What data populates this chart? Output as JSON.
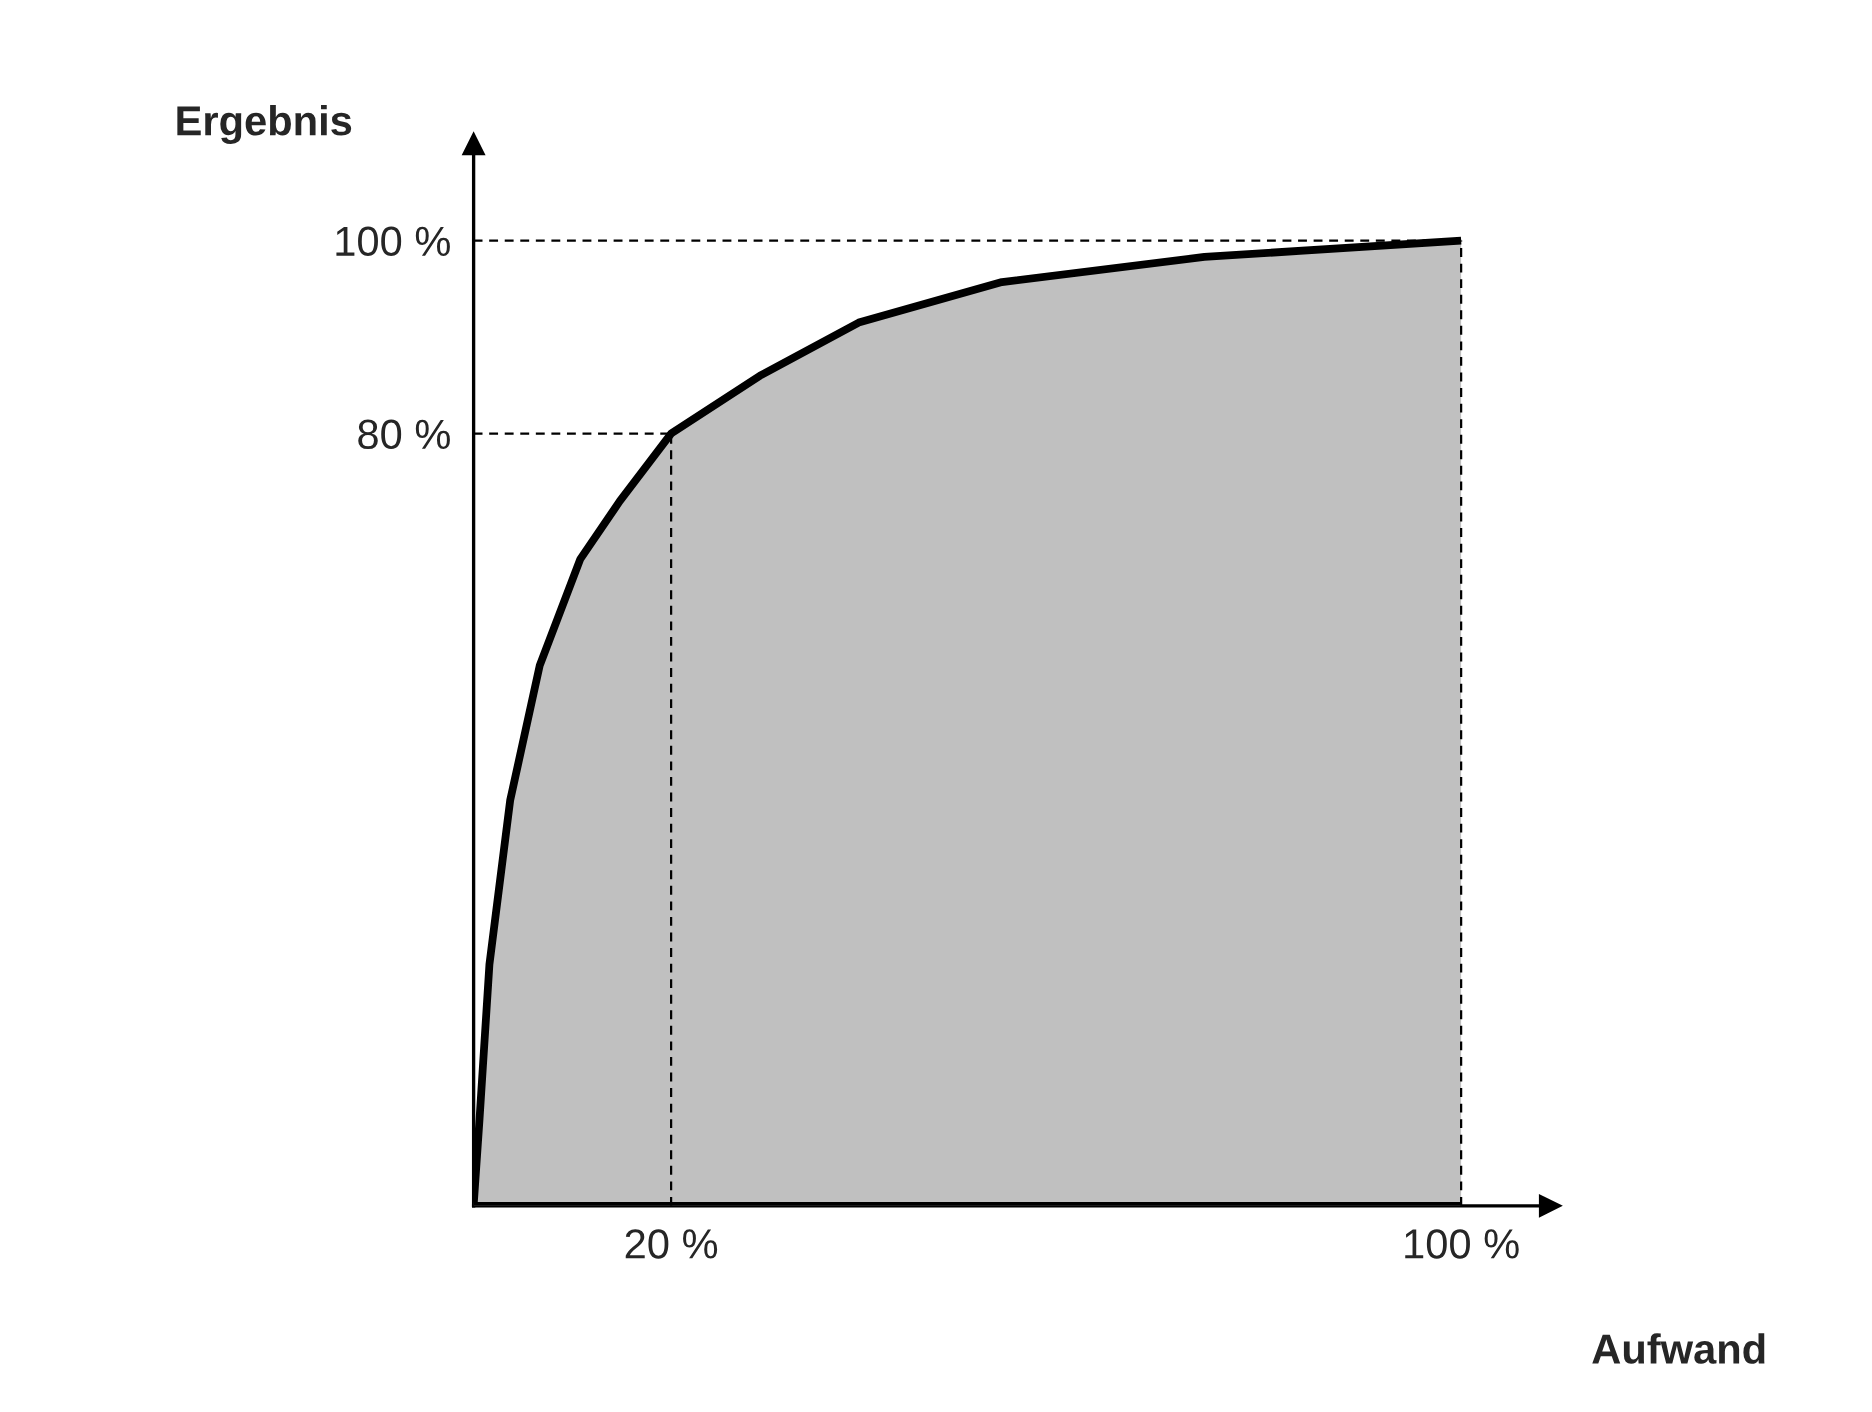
{
  "chart_data": {
    "type": "area",
    "xlabel": "Aufwand",
    "ylabel": "Ergebnis",
    "x": [
      0,
      0.6,
      1.6,
      3.7,
      6.7,
      10.8,
      14.8,
      20,
      29,
      39,
      53.5,
      74,
      100
    ],
    "series": [
      {
        "color": "#c0c0c0",
        "values": [
          0,
          9,
          25,
          42,
          56,
          67,
          73,
          80,
          86,
          91.5,
          95.7,
          98.3,
          100
        ]
      }
    ],
    "xlim": [
      0,
      109
    ],
    "ylim": [
      0,
      110
    ],
    "xticks": [
      {
        "value": 20,
        "label": "20 %"
      },
      {
        "value": 100,
        "label": "100 %"
      }
    ],
    "yticks": [
      {
        "value": 80,
        "label": "80 %"
      },
      {
        "value": 100,
        "label": "100 %"
      }
    ],
    "ref_lines": [
      {
        "axis": "x",
        "value": 20,
        "line_style": "dashed"
      },
      {
        "axis": "y",
        "value": 80,
        "line_style": "dashed"
      },
      {
        "axis": "x",
        "value": 100,
        "line_style": "dashed"
      },
      {
        "axis": "y",
        "value": 100,
        "line_style": "dashed"
      }
    ],
    "grid": false,
    "legend": false
  }
}
